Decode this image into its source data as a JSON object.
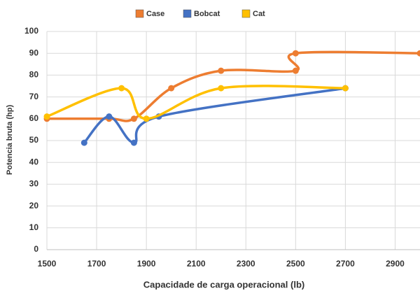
{
  "chart_data": {
    "type": "scatter-smooth",
    "xlabel": "Capacidade de carga operacional (lb)",
    "ylabel": "Potencia bruta (hp)",
    "xlim": [
      1500,
      3000
    ],
    "ylim": [
      0,
      100
    ],
    "xticks": [
      1500,
      1700,
      1900,
      2100,
      2300,
      2500,
      2700,
      2900
    ],
    "yticks": [
      0,
      10,
      20,
      30,
      40,
      50,
      60,
      70,
      80,
      90,
      100
    ],
    "grid": true,
    "legend": "top",
    "series": [
      {
        "name": "Case",
        "color": "#ED7D31",
        "x": [
          1500,
          1750,
          1850,
          2000,
          2200,
          2500,
          2500,
          3000
        ],
        "values": [
          60,
          60,
          60,
          74,
          82,
          82,
          90,
          90
        ]
      },
      {
        "name": "Bobcat",
        "color": "#4472C4",
        "x": [
          1650,
          1750,
          1850,
          1950,
          2700
        ],
        "values": [
          49,
          61,
          49,
          61,
          74
        ]
      },
      {
        "name": "Cat",
        "color": "#FFC000",
        "x": [
          1500,
          1800,
          1900,
          2200,
          2700
        ],
        "values": [
          61,
          74,
          60,
          74,
          74
        ]
      }
    ]
  }
}
